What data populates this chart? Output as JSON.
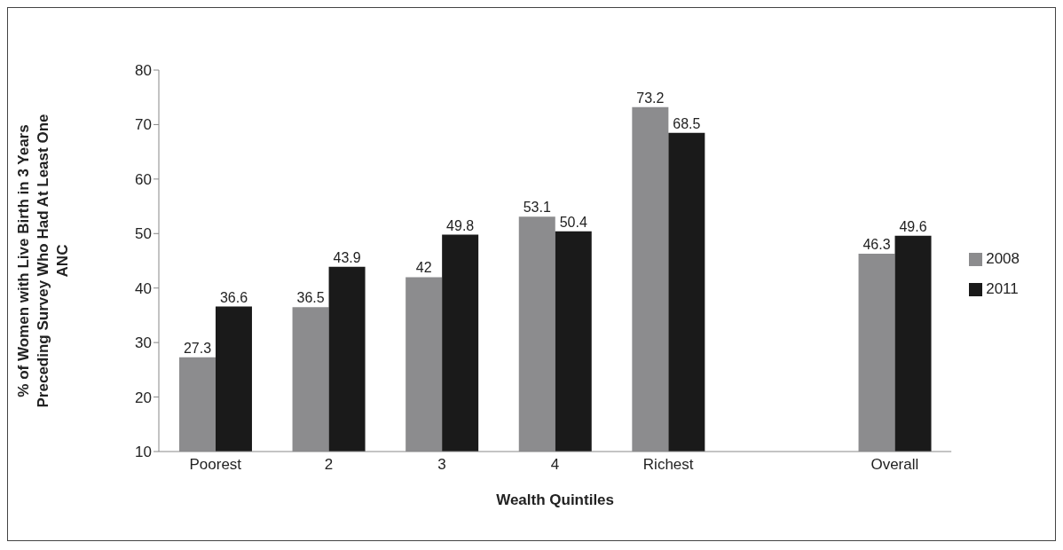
{
  "chart_data": {
    "type": "bar",
    "xlabel": "Wealth Quintiles",
    "ylabel": "% of Women with Live Birth in 3 Years Preceding Survey Who Had At Least One ANC",
    "categories": [
      "Poorest",
      "2",
      "3",
      "4",
      "Richest",
      null,
      "Overall"
    ],
    "series": [
      {
        "name": "2008",
        "color": "#8c8c8e",
        "values": [
          27.3,
          36.5,
          42,
          53.1,
          73.2,
          null,
          46.3
        ]
      },
      {
        "name": "2011",
        "color": "#1a1a1a",
        "values": [
          36.6,
          43.9,
          49.8,
          50.4,
          68.5,
          null,
          49.6
        ]
      }
    ],
    "ylim": [
      10,
      80
    ],
    "yticks": [
      10,
      20,
      30,
      40,
      50,
      60,
      70,
      80
    ],
    "grid": false,
    "legend": "right",
    "data_labels": true
  }
}
